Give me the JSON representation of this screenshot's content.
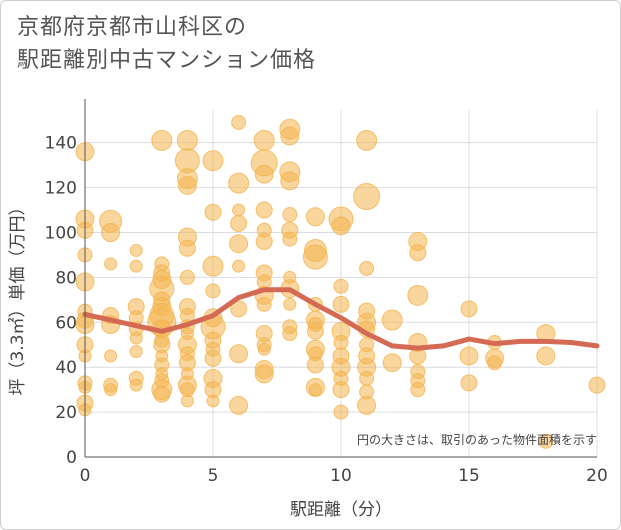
{
  "title_line1": "京都府京都市山科区の",
  "title_line2": "駅距離別中古マンション価格",
  "colors": {
    "bubble": "#f4b44e",
    "trend": "#d46a54",
    "grid": "#d9dde2",
    "axis": "#555555"
  },
  "chart_data": {
    "type": "scatter",
    "xlabel": "駅距離（分）",
    "ylabel": "坪（3.3㎡）単価（万円）",
    "xlim": [
      0,
      20
    ],
    "ylim": [
      0,
      155
    ],
    "x_ticks": [
      0,
      5,
      10,
      15,
      20
    ],
    "y_ticks": [
      0,
      20,
      40,
      60,
      80,
      100,
      120,
      140
    ],
    "grid": true,
    "annotation": "円の大きさは、取引のあった物件面積を示す",
    "points": [
      [
        0,
        136,
        9
      ],
      [
        0,
        106,
        9
      ],
      [
        0,
        101,
        8
      ],
      [
        0,
        90,
        7
      ],
      [
        0,
        78,
        9
      ],
      [
        0,
        65,
        7
      ],
      [
        0,
        61,
        8
      ],
      [
        0,
        59,
        9
      ],
      [
        0,
        50,
        8
      ],
      [
        0,
        45,
        6
      ],
      [
        0,
        33,
        7
      ],
      [
        0,
        31,
        6
      ],
      [
        0,
        24,
        8
      ],
      [
        0,
        21,
        6
      ],
      [
        1,
        105,
        11
      ],
      [
        1,
        100,
        9
      ],
      [
        1,
        86,
        6
      ],
      [
        1,
        63,
        8
      ],
      [
        1,
        59,
        9
      ],
      [
        1,
        45,
        6
      ],
      [
        1,
        32,
        7
      ],
      [
        1,
        30,
        6
      ],
      [
        2,
        92,
        6
      ],
      [
        2,
        85,
        6
      ],
      [
        2,
        67,
        8
      ],
      [
        2,
        62,
        7
      ],
      [
        2,
        57,
        7
      ],
      [
        2,
        53,
        6
      ],
      [
        2,
        47,
        6
      ],
      [
        2,
        35,
        7
      ],
      [
        2,
        32,
        6
      ],
      [
        3,
        141,
        10
      ],
      [
        3,
        86,
        7
      ],
      [
        3,
        82,
        8
      ],
      [
        3,
        79,
        9
      ],
      [
        3,
        75,
        12
      ],
      [
        3,
        70,
        8
      ],
      [
        3,
        67,
        9
      ],
      [
        3,
        63,
        12
      ],
      [
        3,
        60,
        14
      ],
      [
        3,
        57,
        9
      ],
      [
        3,
        52,
        7
      ],
      [
        3,
        50,
        8
      ],
      [
        3,
        45,
        6
      ],
      [
        3,
        41,
        7
      ],
      [
        3,
        37,
        6
      ],
      [
        3,
        34,
        7
      ],
      [
        3,
        30,
        10
      ],
      [
        3,
        28,
        8
      ],
      [
        4,
        141,
        10
      ],
      [
        4,
        132,
        12
      ],
      [
        4,
        124,
        10
      ],
      [
        4,
        121,
        9
      ],
      [
        4,
        98,
        9
      ],
      [
        4,
        93,
        8
      ],
      [
        4,
        80,
        7
      ],
      [
        4,
        67,
        8
      ],
      [
        4,
        63,
        7
      ],
      [
        4,
        58,
        7
      ],
      [
        4,
        55,
        6
      ],
      [
        4,
        50,
        9
      ],
      [
        4,
        46,
        7
      ],
      [
        4,
        42,
        8
      ],
      [
        4,
        37,
        6
      ],
      [
        4,
        32,
        9
      ],
      [
        4,
        30,
        7
      ],
      [
        4,
        25,
        6
      ],
      [
        5,
        132,
        10
      ],
      [
        5,
        109,
        8
      ],
      [
        5,
        85,
        10
      ],
      [
        5,
        74,
        7
      ],
      [
        5,
        62,
        9
      ],
      [
        5,
        58,
        12
      ],
      [
        5,
        52,
        8
      ],
      [
        5,
        48,
        7
      ],
      [
        5,
        44,
        8
      ],
      [
        5,
        35,
        9
      ],
      [
        5,
        30,
        8
      ],
      [
        5,
        25,
        6
      ],
      [
        6,
        149,
        7
      ],
      [
        6,
        122,
        10
      ],
      [
        6,
        110,
        6
      ],
      [
        6,
        104,
        8
      ],
      [
        6,
        95,
        9
      ],
      [
        6,
        85,
        6
      ],
      [
        6,
        66,
        8
      ],
      [
        6,
        46,
        9
      ],
      [
        6,
        23,
        9
      ],
      [
        7,
        141,
        10
      ],
      [
        7,
        131,
        13
      ],
      [
        7,
        126,
        9
      ],
      [
        7,
        110,
        8
      ],
      [
        7,
        101,
        7
      ],
      [
        7,
        96,
        8
      ],
      [
        7,
        82,
        8
      ],
      [
        7,
        78,
        7
      ],
      [
        7,
        72,
        9
      ],
      [
        7,
        68,
        7
      ],
      [
        7,
        55,
        8
      ],
      [
        7,
        50,
        7
      ],
      [
        7,
        48,
        6
      ],
      [
        7,
        39,
        9
      ],
      [
        7,
        37,
        9
      ],
      [
        8,
        146,
        10
      ],
      [
        8,
        143,
        9
      ],
      [
        8,
        127,
        10
      ],
      [
        8,
        123,
        9
      ],
      [
        8,
        108,
        7
      ],
      [
        8,
        101,
        8
      ],
      [
        8,
        97,
        7
      ],
      [
        8,
        80,
        6
      ],
      [
        8,
        75,
        9
      ],
      [
        8,
        68,
        6
      ],
      [
        8,
        58,
        7
      ],
      [
        8,
        55,
        7
      ],
      [
        9,
        107,
        9
      ],
      [
        9,
        92,
        11
      ],
      [
        9,
        89,
        12
      ],
      [
        9,
        68,
        7
      ],
      [
        9,
        61,
        9
      ],
      [
        9,
        59,
        7
      ],
      [
        9,
        56,
        8
      ],
      [
        9,
        48,
        9
      ],
      [
        9,
        46,
        7
      ],
      [
        9,
        41,
        8
      ],
      [
        9,
        31,
        9
      ],
      [
        9,
        30,
        6
      ],
      [
        10,
        106,
        12
      ],
      [
        10,
        103,
        9
      ],
      [
        10,
        76,
        7
      ],
      [
        10,
        68,
        8
      ],
      [
        10,
        56,
        9
      ],
      [
        10,
        51,
        7
      ],
      [
        10,
        45,
        8
      ],
      [
        10,
        40,
        9
      ],
      [
        10,
        35,
        7
      ],
      [
        10,
        30,
        8
      ],
      [
        10,
        20,
        7
      ],
      [
        11,
        141,
        10
      ],
      [
        11,
        116,
        13
      ],
      [
        11,
        84,
        7
      ],
      [
        11,
        65,
        8
      ],
      [
        11,
        60,
        9
      ],
      [
        11,
        57,
        8
      ],
      [
        11,
        50,
        7
      ],
      [
        11,
        45,
        8
      ],
      [
        11,
        40,
        9
      ],
      [
        11,
        35,
        7
      ],
      [
        11,
        29,
        7
      ],
      [
        11,
        23,
        9
      ],
      [
        12,
        61,
        10
      ],
      [
        12,
        42,
        9
      ],
      [
        13,
        96,
        9
      ],
      [
        13,
        91,
        8
      ],
      [
        13,
        72,
        10
      ],
      [
        13,
        51,
        9
      ],
      [
        13,
        45,
        8
      ],
      [
        13,
        38,
        7
      ],
      [
        13,
        34,
        7
      ],
      [
        13,
        30,
        7
      ],
      [
        15,
        66,
        8
      ],
      [
        15,
        45,
        9
      ],
      [
        15,
        33,
        8
      ],
      [
        16,
        51,
        7
      ],
      [
        16,
        44,
        9
      ],
      [
        16,
        42,
        7
      ],
      [
        18,
        55,
        9
      ],
      [
        18,
        45,
        9
      ],
      [
        18,
        7,
        7
      ],
      [
        20,
        32,
        8
      ]
    ],
    "trend": [
      [
        0,
        63.5
      ],
      [
        1,
        61
      ],
      [
        2,
        58.5
      ],
      [
        3,
        56
      ],
      [
        4,
        59
      ],
      [
        5,
        63
      ],
      [
        6,
        71
      ],
      [
        7,
        74.5
      ],
      [
        8,
        74.5
      ],
      [
        9,
        68
      ],
      [
        10,
        62
      ],
      [
        11,
        55
      ],
      [
        12,
        49.5
      ],
      [
        13,
        48.5
      ],
      [
        14,
        49.5
      ],
      [
        15,
        52.5
      ],
      [
        16,
        50.5
      ],
      [
        17,
        51.5
      ],
      [
        18,
        51.5
      ],
      [
        19,
        51
      ],
      [
        20,
        49.5
      ]
    ]
  }
}
